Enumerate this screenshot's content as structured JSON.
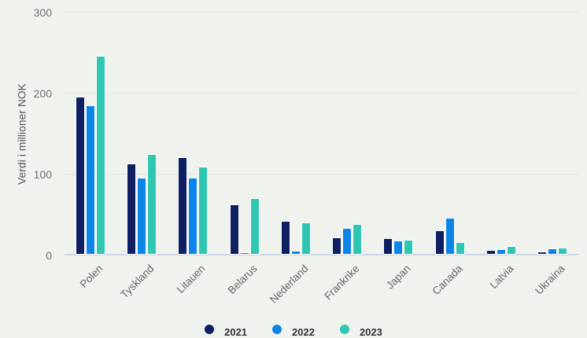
{
  "colors": {
    "background": "#f0f2ee",
    "gridline": "#e3e5e0",
    "axis_line": "#ccd4e8",
    "tick_label": "#707070",
    "axis_title": "#555555",
    "x_label": "#666666",
    "legend_text": "#333333"
  },
  "chart_data": {
    "type": "bar",
    "title": "",
    "xlabel": "",
    "ylabel": "Verdi i millioner NOK",
    "ylim": [
      0,
      300
    ],
    "yticks": [
      0,
      100,
      200,
      300
    ],
    "grid": "horizontal",
    "legend_position": "bottom",
    "categories": [
      "Polen",
      "Tyskland",
      "Litauen",
      "Belarus",
      "Nederland",
      "Frankrike",
      "Japan",
      "Canada",
      "Latvia",
      "Ukraina"
    ],
    "series": [
      {
        "name": "2021",
        "color": "#0e1f62",
        "values": [
          195,
          113,
          120,
          62,
          42,
          21,
          20,
          30,
          6,
          4
        ]
      },
      {
        "name": "2022",
        "color": "#0d84e8",
        "values": [
          184,
          95,
          95,
          3,
          5,
          33,
          17,
          46,
          7,
          8
        ]
      },
      {
        "name": "2023",
        "color": "#2fc7b2",
        "values": [
          246,
          124,
          109,
          70,
          40,
          38,
          18,
          16,
          11,
          9
        ]
      }
    ]
  }
}
